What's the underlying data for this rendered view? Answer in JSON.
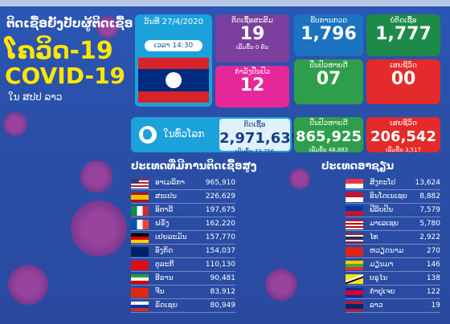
{
  "header": {
    "line1": "ຕິດເຊື້ອຍັງປັບຜູ້ຕິດເຊື້ອ",
    "title": "ໂຄວິດ-19",
    "covid": "COVID-19",
    "subtitle": "ໃນ ສປປ ລາວ"
  },
  "laos": {
    "date": "ວັນທີ 27/4/2020",
    "time": "ເວລາ 14:30",
    "cumulative": {
      "label": "ຕິດເຊື້ອສະສົມ",
      "value": "19",
      "note": "ເພີ່ມຂຶ້ນ 0 ຄົນ"
    },
    "treating": {
      "label": "ກຳລັງປິ່ນປົວ",
      "value": "12"
    },
    "tested": {
      "label": "ຮັບການກວດ",
      "value": "1,796"
    },
    "negative": {
      "label": "ບໍ່ຕິດເຊື້ອ",
      "value": "1,777"
    },
    "recovered": {
      "label": "ປິ່ນປົວຫາຍດີ",
      "value": "07"
    },
    "deaths": {
      "label": "ເສຍຊີວິດ",
      "value": "00"
    }
  },
  "world": {
    "label": "ໃນທົ່ວໂລກ",
    "cases": {
      "label": "ຕິດເຊື້ອ",
      "value": "2,971,639",
      "note": "ເພີ່ມຂຶ້ນ 73,756"
    },
    "recovered": {
      "label": "ປິ່ນປົວຫາຍດີ",
      "value": "865,925",
      "note": "ເພີ່ມຂຶ້ນ 48,883"
    },
    "deaths": {
      "label": "ເສຍຊີວິດ",
      "value": "206,542",
      "note": "ເພີ່ມຂຶ້ນ 3,517"
    }
  },
  "top_countries": {
    "title": "ປະເທດທີ່ມີການຕິດເຊື້ອສູງ",
    "rows": [
      {
        "name": "ອາເມລິກາ",
        "value": "965,910"
      },
      {
        "name": "ສະເປນ",
        "value": "226,629"
      },
      {
        "name": "ອິຕາລີ",
        "value": "197,675"
      },
      {
        "name": "ຝຣັ່ງ",
        "value": "162,220"
      },
      {
        "name": "ເຢຍລະມັນ",
        "value": "157,770"
      },
      {
        "name": "ອັງກິດ",
        "value": "154,037"
      },
      {
        "name": "ຕຸລະກີ",
        "value": "110,130"
      },
      {
        "name": "ອີຣານ",
        "value": "90,481"
      },
      {
        "name": "ຈີນ",
        "value": "83,912"
      },
      {
        "name": "ຣັດເຊຍ",
        "value": "80,949"
      }
    ]
  },
  "asean": {
    "title": "ປະເທດອາຊຽນ",
    "rows": [
      {
        "name": "ສິງກະໂປ",
        "value": "13,624"
      },
      {
        "name": "ອິນໂດເນເຊຍ",
        "value": "8,882"
      },
      {
        "name": "ຟີລິບປິນ",
        "value": "7,579"
      },
      {
        "name": "ມາເລເຊຍ",
        "value": "5,780"
      },
      {
        "name": "ໄທ",
        "value": "2,922"
      },
      {
        "name": "ຫວຽດນາມ",
        "value": "270"
      },
      {
        "name": "ມຽນມາ",
        "value": "146"
      },
      {
        "name": "ບຣູໄນ",
        "value": "138"
      },
      {
        "name": "ກຳປູເຈຍ",
        "value": "122"
      },
      {
        "name": "ລາວ",
        "value": "19"
      }
    ]
  },
  "colors": {
    "background": "#2a4fa8",
    "yellow": "#ffe600",
    "purple": "#7b3f9d",
    "pink": "#e6279a",
    "green": "#2f9e4c",
    "red": "#e42a2a",
    "cyan": "#1ba2db"
  }
}
